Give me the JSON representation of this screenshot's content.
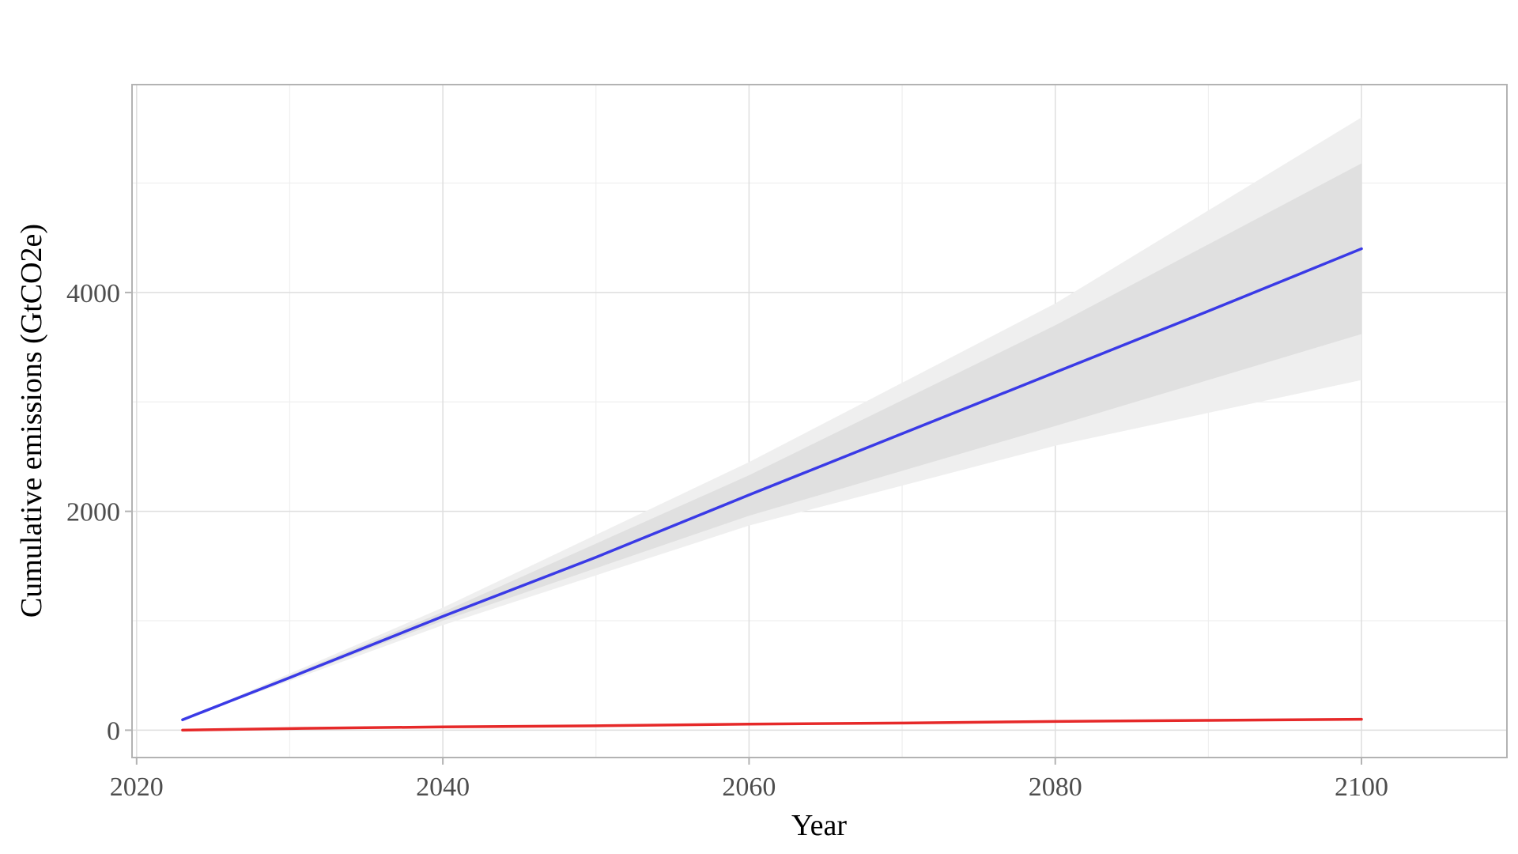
{
  "chart_data": {
    "type": "line",
    "title": "",
    "xlabel": "Year",
    "ylabel": "Cumulative emissions (GtCO2e)",
    "xlim": [
      2019.7,
      2109.5
    ],
    "ylim": [
      -250,
      5900
    ],
    "x_ticks": [
      2020,
      2040,
      2060,
      2080,
      2100
    ],
    "x_tick_labels": [
      "2020",
      "2040",
      "2060",
      "2080",
      "2100"
    ],
    "x_minor_ticks": [
      2030,
      2050,
      2070,
      2090
    ],
    "y_ticks": [
      0,
      2000,
      4000
    ],
    "y_tick_labels": [
      "0",
      "2000",
      "4000"
    ],
    "y_minor_ticks": [
      1000,
      3000,
      5000
    ],
    "grid": true,
    "legend": "none",
    "series": [
      {
        "color": "#3a3ae6",
        "x": [
          2023,
          2030,
          2040,
          2050,
          2060,
          2070,
          2080,
          2090,
          2100
        ],
        "values": [
          95,
          480,
          1040,
          1580,
          2150,
          2710,
          3270,
          3830,
          4400
        ]
      },
      {
        "color": "#e62929",
        "x": [
          2023,
          2030,
          2040,
          2050,
          2060,
          2070,
          2080,
          2090,
          2100
        ],
        "values": [
          0,
          15,
          30,
          40,
          55,
          65,
          80,
          90,
          100
        ]
      }
    ],
    "bands": [
      {
        "level": "outer",
        "color": "#efefef",
        "x": [
          2023,
          2040,
          2060,
          2080,
          2100
        ],
        "lower": [
          95,
          960,
          1870,
          2600,
          3200
        ],
        "upper": [
          95,
          1120,
          2450,
          3900,
          5600
        ]
      },
      {
        "level": "inner",
        "color": "#e0e0e0",
        "x": [
          2023,
          2040,
          2060,
          2080,
          2100
        ],
        "lower": [
          95,
          1000,
          1960,
          2780,
          3620
        ],
        "upper": [
          95,
          1080,
          2330,
          3700,
          5180
        ]
      }
    ]
  }
}
